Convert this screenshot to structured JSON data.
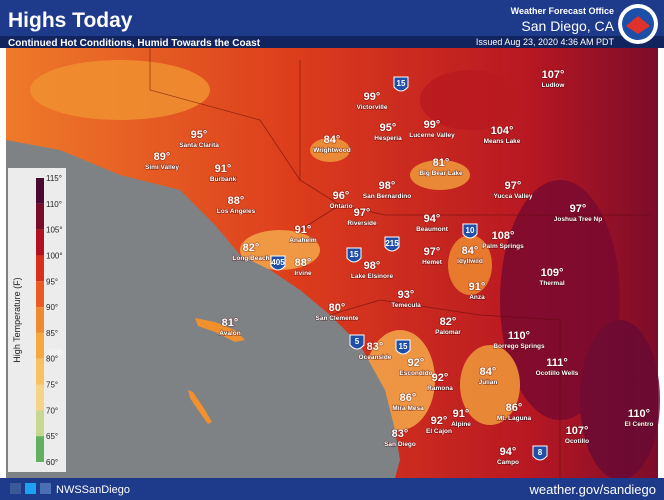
{
  "header": {
    "title": "Highs Today",
    "subtitle": "Continued Hot Conditions, Humid Towards the Coast",
    "office": "Weather Forecast Office",
    "location": "San Diego, CA",
    "issued": "Issued Aug 23, 2020 4:36 AM PDT"
  },
  "legend": {
    "title": "High Temperature (F)",
    "ticks": [
      "115°",
      "110°",
      "105°",
      "100°",
      "95°",
      "90°",
      "85°",
      "80°",
      "75°",
      "70°",
      "65°",
      "60°"
    ]
  },
  "cities": [
    {
      "name": "Victorville",
      "temp": "99°"
    },
    {
      "name": "Ludlow",
      "temp": "107°"
    },
    {
      "name": "Hesperia",
      "temp": "95°"
    },
    {
      "name": "Lucerne Valley",
      "temp": "99°"
    },
    {
      "name": "Means Lake",
      "temp": "104°"
    },
    {
      "name": "Santa Clarita",
      "temp": "95°"
    },
    {
      "name": "Wrightwood",
      "temp": "84°"
    },
    {
      "name": "Simi Valley",
      "temp": "89°"
    },
    {
      "name": "Burbank",
      "temp": "91°"
    },
    {
      "name": "Big Bear Lake",
      "temp": "81°"
    },
    {
      "name": "Yucca Valley",
      "temp": "97°"
    },
    {
      "name": "Ontario",
      "temp": "96°"
    },
    {
      "name": "San Bernardino",
      "temp": "98°"
    },
    {
      "name": "Los Angeles",
      "temp": "88°"
    },
    {
      "name": "Joshua Tree Np",
      "temp": "97°"
    },
    {
      "name": "Riverside",
      "temp": "97°"
    },
    {
      "name": "Beaumont",
      "temp": "94°"
    },
    {
      "name": "Anaheim",
      "temp": "91°"
    },
    {
      "name": "Hemet",
      "temp": "97°"
    },
    {
      "name": "Idyllwild",
      "temp": "84°"
    },
    {
      "name": "Palm Springs",
      "temp": "108°"
    },
    {
      "name": "Long Beach",
      "temp": "82°"
    },
    {
      "name": "Irvine",
      "temp": "88°"
    },
    {
      "name": "Lake Elsinore",
      "temp": "98°"
    },
    {
      "name": "Thermal",
      "temp": "109°"
    },
    {
      "name": "Anza",
      "temp": "91°"
    },
    {
      "name": "Temecula",
      "temp": "93°"
    },
    {
      "name": "San Clemente",
      "temp": "80°"
    },
    {
      "name": "Avalon",
      "temp": "81°"
    },
    {
      "name": "Palomar",
      "temp": "82°"
    },
    {
      "name": "Borrego Springs",
      "temp": "110°"
    },
    {
      "name": "Oceanside",
      "temp": "83°"
    },
    {
      "name": "Ocotillo Wells",
      "temp": "111°"
    },
    {
      "name": "Escondido",
      "temp": "92°"
    },
    {
      "name": "Julian",
      "temp": "84°"
    },
    {
      "name": "Ramona",
      "temp": "92°"
    },
    {
      "name": "Mira Mesa",
      "temp": "86°"
    },
    {
      "name": "Mt. Laguna",
      "temp": "86°"
    },
    {
      "name": "Alpine",
      "temp": "91°"
    },
    {
      "name": "El Cajon",
      "temp": "92°"
    },
    {
      "name": "El Centro",
      "temp": "110°"
    },
    {
      "name": "Ocotillo",
      "temp": "107°"
    },
    {
      "name": "San Diego",
      "temp": "83°"
    },
    {
      "name": "Campo",
      "temp": "94°"
    }
  ],
  "highways": [
    "15",
    "215",
    "10",
    "405",
    "15",
    "5",
    "15",
    "8"
  ],
  "footer": {
    "social": "NWSSanDiego",
    "url": "weather.gov/sandiego"
  }
}
